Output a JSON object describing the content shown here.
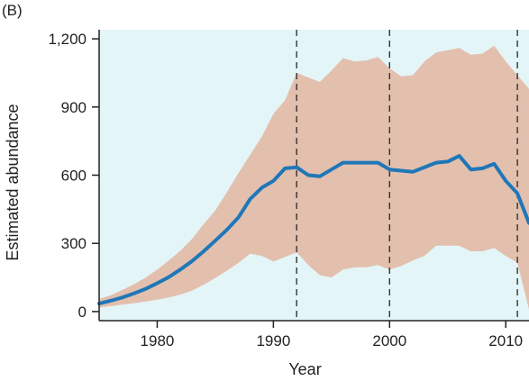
{
  "panel_label": "(B)",
  "colors": {
    "background": "#e4f5f8",
    "band": "#e3bfae",
    "line": "#1f77b8",
    "axis": "#222222",
    "vline": "#333333"
  },
  "chart_data": {
    "type": "line",
    "xlabel": "Year",
    "ylabel": "Estimated abundance",
    "xlim": [
      1975,
      2012
    ],
    "ylim": [
      -40,
      1240
    ],
    "xticks": [
      1980,
      1990,
      2000,
      2010
    ],
    "xtick_labels": [
      "1980",
      "1990",
      "2000",
      "2010"
    ],
    "yticks": [
      0,
      300,
      600,
      900,
      1200
    ],
    "ytick_labels": [
      "0",
      "300",
      "600",
      "900",
      "1,200"
    ],
    "grid": false,
    "vertical_lines": [
      1992,
      2000,
      2011
    ],
    "series": [
      {
        "x": [
          1975,
          1976,
          1977,
          1978,
          1979,
          1980,
          1981,
          1982,
          1983,
          1984,
          1985,
          1986,
          1987,
          1988,
          1989,
          1990,
          1991,
          1992,
          1993,
          1994,
          1995,
          1996,
          1997,
          1998,
          1999,
          2000,
          2001,
          2002,
          2003,
          2004,
          2005,
          2006,
          2007,
          2008,
          2009,
          2010,
          2011,
          2012
        ],
        "y": [
          35,
          48,
          62,
          80,
          100,
          125,
          152,
          185,
          222,
          265,
          312,
          360,
          415,
          495,
          545,
          575,
          630,
          635,
          600,
          595,
          625,
          655,
          655,
          655,
          655,
          625,
          620,
          615,
          635,
          655,
          660,
          685,
          625,
          630,
          650,
          575,
          520,
          390
        ]
      }
    ],
    "band": {
      "x": [
        1975,
        1976,
        1977,
        1978,
        1979,
        1980,
        1981,
        1982,
        1983,
        1984,
        1985,
        1986,
        1987,
        1988,
        1989,
        1990,
        1991,
        1992,
        1993,
        1994,
        1995,
        1996,
        1997,
        1998,
        1999,
        2000,
        2001,
        2002,
        2003,
        2004,
        2005,
        2006,
        2007,
        2008,
        2009,
        2010,
        2011,
        2012
      ],
      "lower": [
        18,
        24,
        30,
        37,
        44,
        52,
        62,
        75,
        92,
        118,
        148,
        180,
        215,
        255,
        245,
        220,
        240,
        260,
        205,
        160,
        150,
        185,
        195,
        195,
        205,
        185,
        200,
        225,
        245,
        290,
        290,
        290,
        265,
        265,
        280,
        245,
        215,
        10
      ],
      "upper": [
        55,
        72,
        95,
        120,
        150,
        185,
        225,
        268,
        320,
        385,
        445,
        525,
        610,
        690,
        770,
        870,
        930,
        1050,
        1030,
        1010,
        1060,
        1115,
        1100,
        1105,
        1120,
        1070,
        1035,
        1040,
        1100,
        1140,
        1150,
        1160,
        1130,
        1135,
        1170,
        1100,
        1040,
        980
      ]
    }
  }
}
